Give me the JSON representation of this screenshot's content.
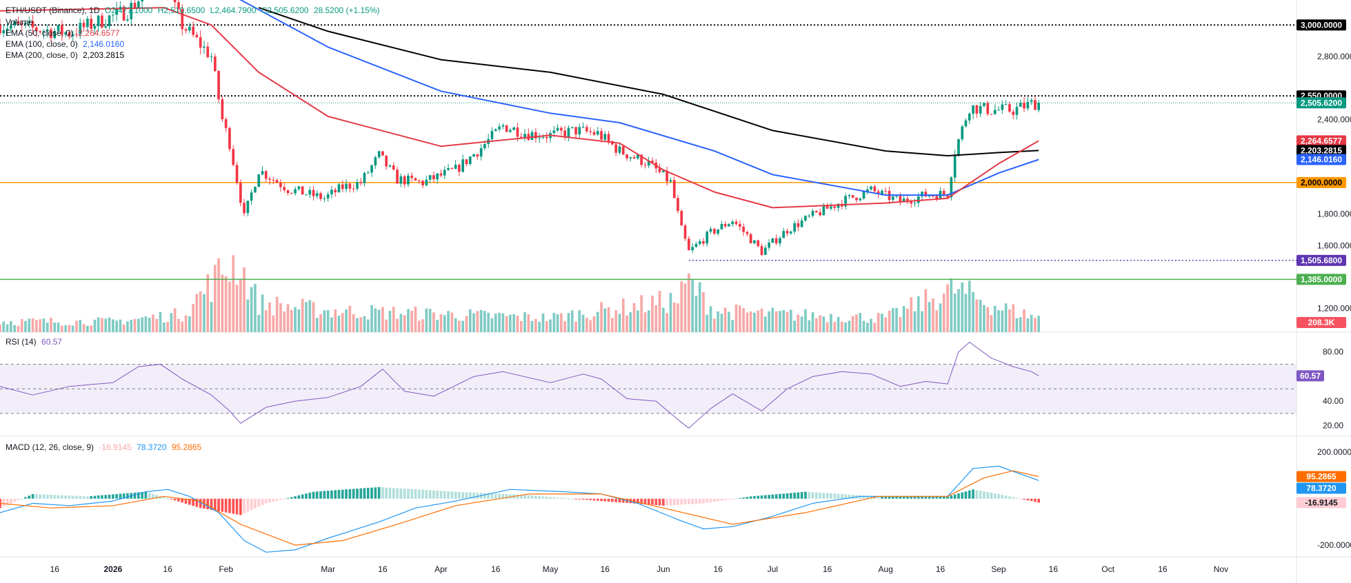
{
  "header": {
    "symbol": "ETH/USDT (Binance), 1D",
    "open": "O2,477.1000",
    "high": "H2,510.6500",
    "low": "L2,464.7900",
    "close": "C2,505.6200",
    "change": "28.5200 (+1.15%)"
  },
  "legend": {
    "volume": "Volume",
    "ema50_label": "EMA (50, close, 0)",
    "ema50_value": "2,264.6577",
    "ema100_label": "EMA (100, close, 0)",
    "ema100_value": "2,146.0160",
    "ema200_label": "EMA (200, close, 0)",
    "ema200_value": "2,203.2815",
    "rsi_label": "RSI (14)",
    "rsi_value": "60.57",
    "macd_label": "MACD (12, 26, close, 9)",
    "macd_hist_value": "-16.9145",
    "macd_line_value": "78.3720",
    "macd_signal_value": "95.2865"
  },
  "colors": {
    "up": "#089981",
    "down": "#f23645",
    "vol_up": "#80cbc4",
    "vol_down": "#f7a9a7",
    "ema50": "#e53945",
    "ema100": "#2962ff",
    "ema200": "#000000",
    "orange_level": "#ff9800",
    "green_level": "#4caf50",
    "support_dotted": "#3f3fbf",
    "rsi": "#7e57c2",
    "macd_line": "#2196f3",
    "macd_signal": "#ff6d00"
  },
  "chart_data": [
    {
      "type": "candlestick",
      "x_axis_labels": [
        "16",
        "2026",
        "16",
        "Feb",
        "Mar",
        "16",
        "Apr",
        "16",
        "May",
        "16",
        "Jun",
        "16",
        "Jul",
        "16",
        "Aug",
        "16",
        "Sep",
        "16",
        "Oct",
        "16",
        "Nov"
      ],
      "y_axis_ticks": [
        "2,800.0000",
        "2,400.0000",
        "1,800.0000",
        "1,600.0000",
        "1,200.0000"
      ],
      "ylim": [
        1050,
        3150
      ],
      "price_points": [
        [
          "2025-12-01",
          3000
        ],
        [
          "2025-12-20",
          2950
        ],
        [
          "2026-01-05",
          3090
        ],
        [
          "2026-01-14",
          3310
        ],
        [
          "2026-01-20",
          3000
        ],
        [
          "2026-01-28",
          2800
        ],
        [
          "2026-01-31",
          2400
        ],
        [
          "2026-02-02",
          2250
        ],
        [
          "2026-02-05",
          1900
        ],
        [
          "2026-02-06",
          1780
        ],
        [
          "2026-02-10",
          2080
        ],
        [
          "2026-02-18",
          1960
        ],
        [
          "2026-02-28",
          1900
        ],
        [
          "2026-03-05",
          1970
        ],
        [
          "2026-03-10",
          2000
        ],
        [
          "2026-03-15",
          2170
        ],
        [
          "2026-03-20",
          2020
        ],
        [
          "2026-03-27",
          2000
        ],
        [
          "2026-04-05",
          2080
        ],
        [
          "2026-04-12",
          2220
        ],
        [
          "2026-04-18",
          2360
        ],
        [
          "2026-04-25",
          2310
        ],
        [
          "2026-05-01",
          2300
        ],
        [
          "2026-05-08",
          2330
        ],
        [
          "2026-05-14",
          2310
        ],
        [
          "2026-05-20",
          2200
        ],
        [
          "2026-05-28",
          2120
        ],
        [
          "2026-06-03",
          2000
        ],
        [
          "2026-06-06",
          1700
        ],
        [
          "2026-06-08",
          1560
        ],
        [
          "2026-06-14",
          1680
        ],
        [
          "2026-06-20",
          1760
        ],
        [
          "2026-06-25",
          1640
        ],
        [
          "2026-06-28",
          1560
        ],
        [
          "2026-07-05",
          1700
        ],
        [
          "2026-07-12",
          1790
        ],
        [
          "2026-07-20",
          1880
        ],
        [
          "2026-07-28",
          1950
        ],
        [
          "2026-08-05",
          1880
        ],
        [
          "2026-08-12",
          1920
        ],
        [
          "2026-08-18",
          1930
        ],
        [
          "2026-08-20",
          2200
        ],
        [
          "2026-08-24",
          2480
        ],
        [
          "2026-08-30",
          2460
        ],
        [
          "2026-09-05",
          2460
        ],
        [
          "2026-09-10",
          2500
        ],
        [
          "2026-09-12",
          2505.62
        ]
      ],
      "volume_points": [
        [
          "2025-12-01",
          0.15
        ],
        [
          "2026-01-01",
          0.15
        ],
        [
          "2026-01-20",
          0.25
        ],
        [
          "2026-02-01",
          0.9
        ],
        [
          "2026-02-04",
          1.0
        ],
        [
          "2026-02-10",
          0.4
        ],
        [
          "2026-03-01",
          0.3
        ],
        [
          "2026-04-01",
          0.25
        ],
        [
          "2026-05-01",
          0.2
        ],
        [
          "2026-06-05",
          0.45
        ],
        [
          "2026-06-08",
          0.7
        ],
        [
          "2026-06-15",
          0.3
        ],
        [
          "2026-07-01",
          0.25
        ],
        [
          "2026-08-01",
          0.2
        ],
        [
          "2026-08-20",
          0.6
        ],
        [
          "2026-09-01",
          0.35
        ],
        [
          "2026-09-12",
          0.2
        ]
      ],
      "volume_label": "208.3K",
      "ema50": [
        [
          "2025-12-01",
          3090
        ],
        [
          "2026-01-15",
          3110
        ],
        [
          "2026-01-28",
          3000
        ],
        [
          "2026-02-10",
          2700
        ],
        [
          "2026-03-01",
          2420
        ],
        [
          "2026-04-01",
          2230
        ],
        [
          "2026-05-01",
          2300
        ],
        [
          "2026-05-20",
          2250
        ],
        [
          "2026-06-01",
          2080
        ],
        [
          "2026-06-15",
          1940
        ],
        [
          "2026-07-01",
          1840
        ],
        [
          "2026-08-01",
          1870
        ],
        [
          "2026-08-18",
          1900
        ],
        [
          "2026-09-01",
          2120
        ],
        [
          "2026-09-12",
          2264.66
        ]
      ],
      "ema100": [
        [
          "2026-02-01",
          3210
        ],
        [
          "2026-03-01",
          2860
        ],
        [
          "2026-04-01",
          2580
        ],
        [
          "2026-05-01",
          2440
        ],
        [
          "2026-05-20",
          2380
        ],
        [
          "2026-06-15",
          2200
        ],
        [
          "2026-07-01",
          2050
        ],
        [
          "2026-08-01",
          1920
        ],
        [
          "2026-08-18",
          1920
        ],
        [
          "2026-09-01",
          2060
        ],
        [
          "2026-09-12",
          2146.02
        ]
      ],
      "ema200": [
        [
          "2026-02-10",
          3110
        ],
        [
          "2026-03-01",
          2960
        ],
        [
          "2026-04-01",
          2780
        ],
        [
          "2026-05-01",
          2700
        ],
        [
          "2026-06-01",
          2560
        ],
        [
          "2026-07-01",
          2330
        ],
        [
          "2026-08-01",
          2200
        ],
        [
          "2026-08-18",
          2170
        ],
        [
          "2026-09-01",
          2190
        ],
        [
          "2026-09-12",
          2203.28
        ]
      ],
      "levels": [
        {
          "value": 3000,
          "label": "3,000.0000",
          "style": "dotted",
          "color": "#000000"
        },
        {
          "value": 2550,
          "label": "2,550.0000",
          "style": "dotted",
          "color": "#000000"
        },
        {
          "value": 2505.62,
          "label": "2,505.6200",
          "style": "dotted-light",
          "color": "#089981"
        },
        {
          "value": 2264.66,
          "label": "2,264.6577",
          "style": "none",
          "color": "#e53945"
        },
        {
          "value": 2203.28,
          "label": "2,203.2815",
          "style": "none",
          "color": "#000000"
        },
        {
          "value": 2146.02,
          "label": "2,146.0160",
          "style": "none",
          "color": "#2962ff"
        },
        {
          "value": 2000,
          "label": "2,000.0000",
          "style": "solid",
          "color": "#ff9800"
        },
        {
          "value": 1505.68,
          "label": "1,505.6800",
          "style": "dotted-short",
          "color": "#5e35b1"
        },
        {
          "value": 1385,
          "label": "1,385.0000",
          "style": "solid",
          "color": "#4caf50"
        }
      ]
    },
    {
      "type": "line",
      "name": "RSI (14)",
      "ylim": [
        12,
        95
      ],
      "y_axis_ticks": [
        "80.00",
        "40.00",
        "20.00"
      ],
      "bands": [
        70,
        50,
        30
      ],
      "last_label": "60.57",
      "points": [
        [
          "2025-12-01",
          52
        ],
        [
          "2025-12-10",
          45
        ],
        [
          "2025-12-20",
          52
        ],
        [
          "2026-01-01",
          55
        ],
        [
          "2026-01-08",
          68
        ],
        [
          "2026-01-14",
          70
        ],
        [
          "2026-01-20",
          58
        ],
        [
          "2026-01-28",
          45
        ],
        [
          "2026-02-02",
          32
        ],
        [
          "2026-02-05",
          22
        ],
        [
          "2026-02-12",
          35
        ],
        [
          "2026-02-20",
          40
        ],
        [
          "2026-03-01",
          43
        ],
        [
          "2026-03-10",
          52
        ],
        [
          "2026-03-16",
          66
        ],
        [
          "2026-03-22",
          48
        ],
        [
          "2026-03-30",
          44
        ],
        [
          "2026-04-10",
          60
        ],
        [
          "2026-04-18",
          64
        ],
        [
          "2026-05-01",
          55
        ],
        [
          "2026-05-10",
          62
        ],
        [
          "2026-05-15",
          58
        ],
        [
          "2026-05-22",
          42
        ],
        [
          "2026-05-30",
          40
        ],
        [
          "2026-06-05",
          25
        ],
        [
          "2026-06-08",
          18
        ],
        [
          "2026-06-14",
          34
        ],
        [
          "2026-06-20",
          46
        ],
        [
          "2026-06-28",
          32
        ],
        [
          "2026-07-05",
          50
        ],
        [
          "2026-07-12",
          60
        ],
        [
          "2026-07-20",
          64
        ],
        [
          "2026-07-28",
          62
        ],
        [
          "2026-08-05",
          52
        ],
        [
          "2026-08-12",
          56
        ],
        [
          "2026-08-18",
          54
        ],
        [
          "2026-08-21",
          80
        ],
        [
          "2026-08-24",
          88
        ],
        [
          "2026-08-30",
          75
        ],
        [
          "2026-09-05",
          68
        ],
        [
          "2026-09-10",
          64
        ],
        [
          "2026-09-12",
          60.57
        ]
      ]
    },
    {
      "type": "line",
      "name": "MACD (12, 26, close, 9)",
      "ylim": [
        -250,
        260
      ],
      "y_axis_ticks": [
        "200.0000",
        "-200.0000"
      ],
      "labels": {
        "signal": "95.2865",
        "macd": "78.3720",
        "hist": "-16.9145"
      },
      "macd_points": [
        [
          "2025-12-01",
          -60
        ],
        [
          "2025-12-10",
          -20
        ],
        [
          "2025-12-20",
          -30
        ],
        [
          "2026-01-01",
          -10
        ],
        [
          "2026-01-10",
          30
        ],
        [
          "2026-01-16",
          40
        ],
        [
          "2026-01-22",
          10
        ],
        [
          "2026-01-30",
          -60
        ],
        [
          "2026-02-06",
          -180
        ],
        [
          "2026-02-12",
          -230
        ],
        [
          "2026-02-20",
          -220
        ],
        [
          "2026-03-01",
          -170
        ],
        [
          "2026-03-15",
          -100
        ],
        [
          "2026-03-25",
          -40
        ],
        [
          "2026-04-05",
          -10
        ],
        [
          "2026-04-20",
          40
        ],
        [
          "2026-05-05",
          30
        ],
        [
          "2026-05-15",
          20
        ],
        [
          "2026-05-25",
          -20
        ],
        [
          "2026-06-05",
          -90
        ],
        [
          "2026-06-12",
          -130
        ],
        [
          "2026-06-20",
          -120
        ],
        [
          "2026-06-30",
          -80
        ],
        [
          "2026-07-12",
          -20
        ],
        [
          "2026-07-25",
          10
        ],
        [
          "2026-08-10",
          10
        ],
        [
          "2026-08-18",
          10
        ],
        [
          "2026-08-25",
          130
        ],
        [
          "2026-09-01",
          140
        ],
        [
          "2026-09-12",
          78.37
        ]
      ],
      "signal_points": [
        [
          "2025-12-01",
          -20
        ],
        [
          "2025-12-15",
          -40
        ],
        [
          "2026-01-01",
          -30
        ],
        [
          "2026-01-15",
          10
        ],
        [
          "2026-01-25",
          -10
        ],
        [
          "2026-02-05",
          -110
        ],
        [
          "2026-02-20",
          -200
        ],
        [
          "2026-03-05",
          -180
        ],
        [
          "2026-03-20",
          -110
        ],
        [
          "2026-04-05",
          -30
        ],
        [
          "2026-04-25",
          20
        ],
        [
          "2026-05-15",
          20
        ],
        [
          "2026-06-01",
          -40
        ],
        [
          "2026-06-20",
          -110
        ],
        [
          "2026-07-10",
          -60
        ],
        [
          "2026-07-30",
          10
        ],
        [
          "2026-08-18",
          10
        ],
        [
          "2026-08-28",
          90
        ],
        [
          "2026-09-05",
          120
        ],
        [
          "2026-09-12",
          95.29
        ]
      ],
      "histogram_points": [
        [
          "2025-12-01",
          -40
        ],
        [
          "2025-12-10",
          20
        ],
        [
          "2025-12-25",
          10
        ],
        [
          "2026-01-10",
          30
        ],
        [
          "2026-01-25",
          -40
        ],
        [
          "2026-02-05",
          -70
        ],
        [
          "2026-02-12",
          -20
        ],
        [
          "2026-02-25",
          30
        ],
        [
          "2026-03-15",
          50
        ],
        [
          "2026-04-05",
          30
        ],
        [
          "2026-04-25",
          15
        ],
        [
          "2026-05-15",
          -10
        ],
        [
          "2026-06-01",
          -30
        ],
        [
          "2026-06-12",
          -20
        ],
        [
          "2026-06-25",
          10
        ],
        [
          "2026-07-10",
          30
        ],
        [
          "2026-07-30",
          10
        ],
        [
          "2026-08-18",
          10
        ],
        [
          "2026-08-25",
          40
        ],
        [
          "2026-09-01",
          20
        ],
        [
          "2026-09-12",
          -16.91
        ]
      ]
    }
  ]
}
